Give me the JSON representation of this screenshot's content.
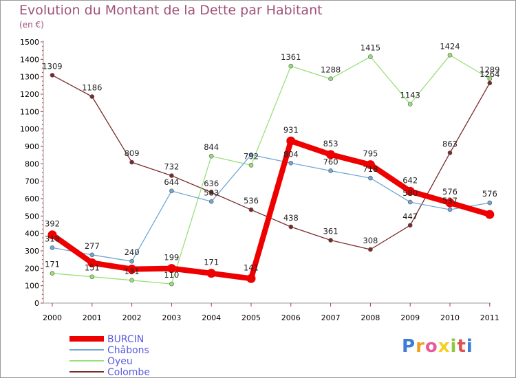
{
  "chart_data": {
    "type": "line",
    "title": "Evolution du Montant de la Dette par Habitant",
    "unit_label": "(en €)",
    "x": [
      "2000",
      "2001",
      "2002",
      "2003",
      "2004",
      "2005",
      "2006",
      "2007",
      "2008",
      "2009",
      "2010",
      "2011"
    ],
    "ylim": [
      0,
      1500
    ],
    "ytick_step": 100,
    "grid": false,
    "legend_position": "bottom-left",
    "series": [
      {
        "name": "BURCIN",
        "color": "#ee0000",
        "values": [
          392,
          231,
          195,
          199,
          171,
          141,
          931,
          853,
          795,
          642,
          576,
          509
        ],
        "labels": [
          "392",
          "",
          "",
          "199",
          "171",
          "141",
          "931",
          "853",
          "795",
          "642",
          "576",
          ""
        ]
      },
      {
        "name": "Châbons",
        "color": "#6fa8d6",
        "values": [
          318,
          277,
          240,
          644,
          583,
          852,
          804,
          760,
          718,
          580,
          537,
          576
        ],
        "labels": [
          "318",
          "277",
          "240",
          "644",
          "583",
          "",
          "804",
          "760",
          "718",
          "580",
          "537",
          "576"
        ]
      },
      {
        "name": "Oyeu",
        "color": "#99e07a",
        "values": [
          171,
          151,
          131,
          110,
          844,
          792,
          1361,
          1288,
          1415,
          1143,
          1424,
          1289
        ],
        "labels": [
          "171",
          "151",
          "131",
          "110",
          "844",
          "792",
          "1361",
          "1288",
          "1415",
          "1143",
          "1424",
          "1289"
        ]
      },
      {
        "name": "Colombe",
        "color": "#7a2a2a",
        "values": [
          1309,
          1186,
          809,
          732,
          636,
          536,
          438,
          361,
          308,
          447,
          863,
          1264
        ],
        "labels": [
          "1309",
          "1186",
          "809",
          "732",
          "636",
          "536",
          "438",
          "361",
          "308",
          "447",
          "863",
          "1264"
        ]
      }
    ]
  },
  "brand": {
    "letters": [
      {
        "ch": "P",
        "color": "#3b7dd8"
      },
      {
        "ch": "r",
        "color": "#f0a020"
      },
      {
        "ch": "o",
        "color": "#e85a9a"
      },
      {
        "ch": "x",
        "color": "#f4d020"
      },
      {
        "ch": "i",
        "color": "#8cc840"
      },
      {
        "ch": "t",
        "color": "#e05050"
      },
      {
        "ch": "i",
        "color": "#3b7dd8"
      }
    ]
  }
}
